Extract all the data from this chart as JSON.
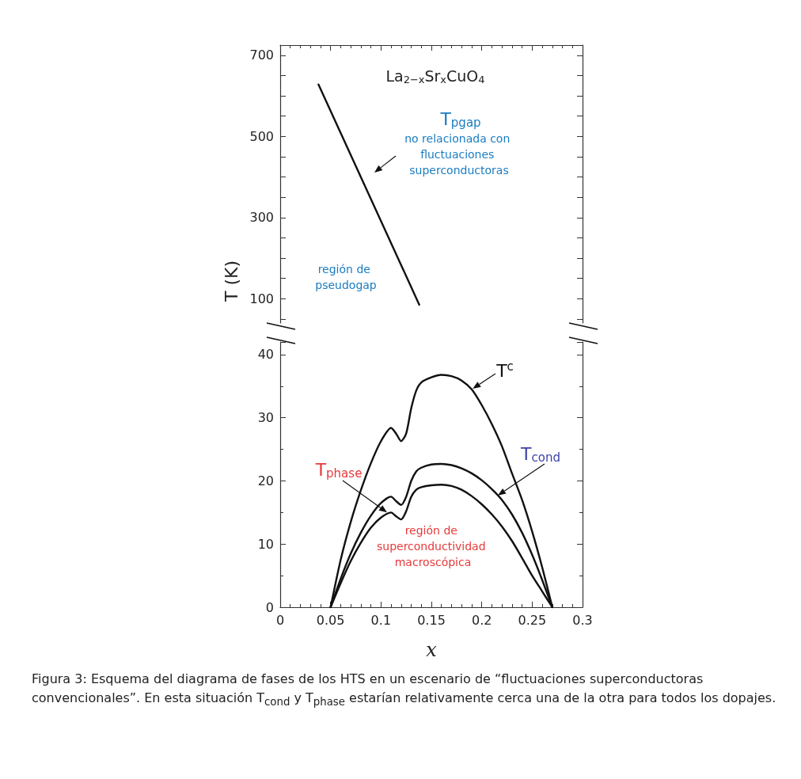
{
  "chart_data": [
    {
      "type": "line",
      "title": "La$_{2−x}$Sr$_{x}$CuO$_{4}$",
      "ylabel": "T (K)",
      "tick_labels": "y",
      "xlim": [
        0,
        0.3
      ],
      "xticks": [
        0,
        0.05,
        0.1,
        0.15,
        0.2,
        0.25,
        0.3
      ],
      "ylim": [
        40,
        725
      ],
      "yticks": [
        {
          "value": 50,
          "label": null
        },
        100,
        {
          "value": 150,
          "label": null
        },
        {
          "value": 200,
          "label": null
        },
        {
          "value": 250,
          "label": null
        },
        300,
        {
          "value": 350,
          "label": null
        },
        {
          "value": 400,
          "label": null
        },
        {
          "value": 450,
          "label": null
        },
        500,
        {
          "value": 550,
          "label": null
        },
        {
          "value": 600,
          "label": null
        },
        {
          "value": 650,
          "label": null
        },
        700
      ],
      "series": [
        {
          "color": "#111111",
          "x": [
            0.038,
            0.138
          ],
          "values": [
            628,
            85
          ]
        }
      ],
      "annotations": [
        "T$_{pgap}$",
        "no relacionada con fluctuaciones superconductoras",
        "región de pseudogap"
      ]
    },
    {
      "type": "line",
      "xlabel": "x",
      "xlim": [
        0,
        0.3
      ],
      "xticks": [
        0,
        0.05,
        0.1,
        0.15,
        0.2,
        0.25,
        0.3
      ],
      "ylim": [
        0,
        42
      ],
      "yticks": [
        0,
        10,
        20,
        30,
        40
      ],
      "x": [
        0.05,
        0.06,
        0.07,
        0.08,
        0.09,
        0.1,
        0.11,
        0.115,
        0.12,
        0.125,
        0.13,
        0.135,
        0.14,
        0.15,
        0.16,
        0.17,
        0.18,
        0.19,
        0.2,
        0.21,
        0.22,
        0.23,
        0.24,
        0.25,
        0.26,
        0.27
      ],
      "series": [
        {
          "color": "#111111",
          "values": [
            0,
            7.5,
            13.5,
            18.5,
            22.8,
            26.3,
            28.4,
            27.5,
            26.3,
            27.5,
            31.5,
            34.3,
            35.6,
            36.4,
            36.8,
            36.6,
            35.9,
            34.5,
            32,
            29,
            25.5,
            21.2,
            17,
            12,
            6.3,
            0
          ]
        },
        {
          "color": "#111111",
          "values": [
            0,
            4.5,
            8.5,
            11.8,
            14.5,
            16.5,
            17.5,
            16.8,
            16.2,
            17.5,
            20,
            21.5,
            22.1,
            22.6,
            22.7,
            22.5,
            22,
            21.2,
            20.1,
            18.7,
            17,
            14.7,
            11.8,
            8.3,
            4.3,
            0
          ]
        },
        {
          "color": "#111111",
          "values": [
            0,
            3.8,
            7.3,
            10.2,
            12.6,
            14.2,
            15,
            14.4,
            13.9,
            15.2,
            17.5,
            18.6,
            19,
            19.3,
            19.4,
            19.2,
            18.6,
            17.6,
            16.3,
            14.7,
            12.8,
            10.5,
            7.8,
            5,
            2.5,
            0
          ]
        }
      ],
      "annotations": [
        {
          "text": "T$^{c}$",
          "x": 0.191,
          "y": 34.6
        },
        {
          "text": "T$_{cond}$",
          "x": 0.216,
          "y": 17.7
        },
        {
          "text": "T$_{phase}$",
          "x": 0.106,
          "y": 15.0
        },
        "región de superconductividad macroscópica",
        "Figura 3: Esquema del diagrama de fases de los HTS en un escenario de “fluctuaciones superconductoras convencionales”. En esta situación T$_{cond}$ y T$_{phase}$ estarían relativamente cerca una de la otra para todos los dopajes."
      ]
    }
  ]
}
